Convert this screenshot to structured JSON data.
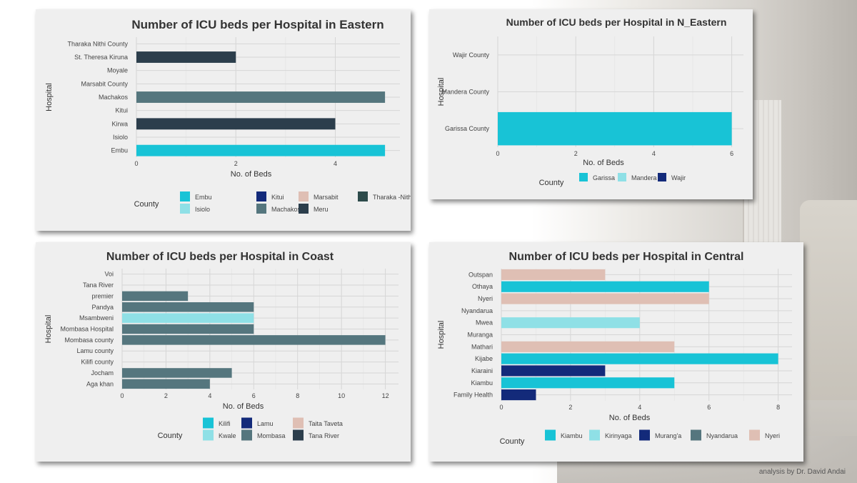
{
  "palette": {
    "Embu": "#18c3d6",
    "Isiolo": "#8fe0e6",
    "Kitui": "#132a7a",
    "Machakos": "#55767e",
    "Marsabit": "#dfbfb4",
    "Meru": "#2c3e4c",
    "Tharaka -Nithi": "#2d4b4b",
    "Garissa": "#18c3d6",
    "Mandera": "#8fe0e6",
    "Wajir": "#132a7a",
    "Kilifi": "#18c3d6",
    "Kwale": "#8fe0e6",
    "Lamu": "#132a7a",
    "Mombasa": "#55767e",
    "Taita Taveta": "#dfbfb4",
    "Tana River": "#2c3e4c",
    "Kiambu": "#18c3d6",
    "Kirinyaga": "#8fe0e6",
    "Murang'a": "#132a7a",
    "Nyandarua": "#55767e",
    "Nyeri": "#dfbfb4"
  },
  "credit": "analysis by Dr. David Andai",
  "chart_data": [
    {
      "type": "bar",
      "orientation": "horizontal",
      "title": "Number of ICU beds per Hospital in Eastern",
      "xlabel": "No. of Beds",
      "ylabel": "Hospital",
      "xlim": [
        0,
        5.3
      ],
      "xticks": [
        0,
        2,
        4
      ],
      "grid": true,
      "legend_position": "bottom",
      "legend_title": "County",
      "legend_columns": 4,
      "legend": [
        "Embu",
        "Isiolo",
        "Kitui",
        "Machakos",
        "Marsabit",
        "Meru",
        "Tharaka -Nithi"
      ],
      "categories": [
        "Tharaka Nithi County",
        "St. Theresa Kiruna",
        "Moyale",
        "Marsabit County",
        "Machakos",
        "Kitui",
        "Kirwa",
        "Isiolo",
        "Embu"
      ],
      "values": [
        0,
        2,
        0,
        0,
        5,
        0,
        4,
        0,
        5
      ],
      "bar_county": [
        "Tharaka -Nithi",
        "Meru",
        "Marsabit",
        "Marsabit",
        "Machakos",
        "Kitui",
        "Meru",
        "Isiolo",
        "Embu"
      ]
    },
    {
      "type": "bar",
      "orientation": "horizontal",
      "title": "Number of ICU beds per Hospital in N_Eastern",
      "xlabel": "No. of Beds",
      "ylabel": "Hospital",
      "xlim": [
        0,
        6.3
      ],
      "xticks": [
        0,
        2,
        4,
        6
      ],
      "grid": true,
      "legend_position": "bottom",
      "legend_title": "County",
      "legend_columns": 3,
      "legend": [
        "Garissa",
        "Mandera",
        "Wajir"
      ],
      "categories": [
        "Wajir County",
        "Mandera County",
        "Garissa County"
      ],
      "values": [
        0,
        0,
        6
      ],
      "bar_county": [
        "Wajir",
        "Mandera",
        "Garissa"
      ]
    },
    {
      "type": "bar",
      "orientation": "horizontal",
      "title": "Number of ICU beds per Hospital in Coast",
      "xlabel": "No. of Beds",
      "ylabel": "Hospital",
      "xlim": [
        0,
        12.6
      ],
      "xticks": [
        0,
        2,
        4,
        6,
        8,
        10,
        12
      ],
      "grid": true,
      "legend_position": "bottom",
      "legend_title": "County",
      "legend_columns": 3,
      "legend": [
        "Kilifi",
        "Kwale",
        "Lamu",
        "Mombasa",
        "Taita Taveta",
        "Tana River"
      ],
      "categories": [
        "Voi",
        "Tana River",
        "premier",
        "Pandya",
        "Msambweni",
        "Mombasa Hospital",
        "Mombasa county",
        "Lamu county",
        "Kilifi county",
        "Jocham",
        "Aga khan"
      ],
      "values": [
        0,
        0,
        3,
        6,
        6,
        6,
        12,
        0,
        0,
        5,
        4
      ],
      "bar_county": [
        "Taita Taveta",
        "Tana River",
        "Mombasa",
        "Mombasa",
        "Kwale",
        "Mombasa",
        "Mombasa",
        "Lamu",
        "Kilifi",
        "Mombasa",
        "Mombasa"
      ]
    },
    {
      "type": "bar",
      "orientation": "horizontal",
      "title": "Number of ICU beds per Hospital in Central",
      "xlabel": "No. of Beds",
      "ylabel": "Hospital",
      "xlim": [
        0,
        8.4
      ],
      "xticks": [
        0,
        2,
        4,
        6,
        8
      ],
      "grid": true,
      "legend_position": "bottom",
      "legend_title": "County",
      "legend_columns": 5,
      "legend": [
        "Kiambu",
        "Kirinyaga",
        "Murang'a",
        "Nyandarua",
        "Nyeri"
      ],
      "categories": [
        "Outspan",
        "Othaya",
        "Nyeri",
        "Nyandarua",
        "Mwea",
        "Muranga",
        "Mathari",
        "Kijabe",
        "Kiaraini",
        "Kiambu",
        "Family Health"
      ],
      "values": [
        3,
        6,
        6,
        0,
        4,
        0,
        5,
        8,
        3,
        5,
        1
      ],
      "bar_county": [
        "Nyeri",
        "Kiambu",
        "Nyeri",
        "Nyandarua",
        "Kirinyaga",
        "Murang'a",
        "Nyeri",
        "Kiambu",
        "Murang'a",
        "Kiambu",
        "Murang'a"
      ]
    }
  ]
}
